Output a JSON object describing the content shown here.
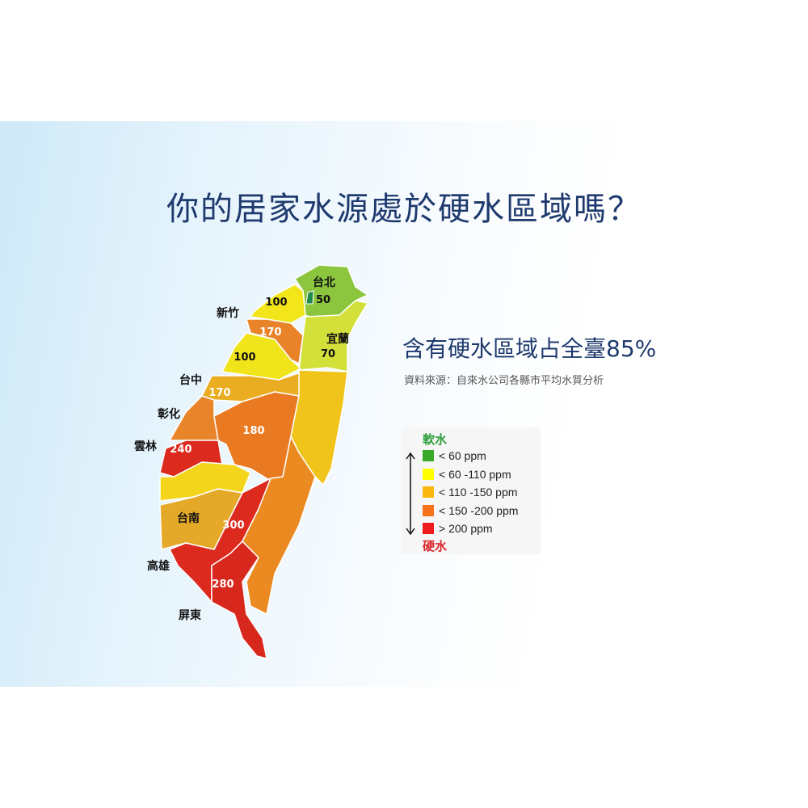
{
  "title": "你的居家水源處於硬水區域嗎？",
  "subtitle": "含有硬水區域占全臺85%",
  "source": "資料來源：自來水公司各縣市平均水質分析",
  "legend": {
    "soft_label": "軟水",
    "hard_label": "硬水",
    "soft_color": "#2e9e3a",
    "hard_color": "#d9262a",
    "items": [
      {
        "label": "< 60 ppm",
        "color": "#3aa829"
      },
      {
        "label": "< 60 -110 ppm",
        "color": "#ffff00"
      },
      {
        "label": "< 110 -150 ppm",
        "color": "#fbb80f"
      },
      {
        "label": "< 150 -200 ppm",
        "color": "#f5731b"
      },
      {
        "label": "> 200 ppm",
        "color": "#ee1c1c"
      }
    ]
  },
  "map_data": {
    "regions": [
      {
        "id": "taipei",
        "value": "50",
        "color": "#8cc63f"
      },
      {
        "id": "hsinchu-north",
        "value": "100",
        "color": "#f2e51a"
      },
      {
        "id": "hsinchu",
        "value": "170",
        "color": "#e8832a"
      },
      {
        "id": "yilan",
        "value": "70",
        "color": "#d4e03a"
      },
      {
        "id": "miaoli",
        "value": "100",
        "color": "#f0e41a"
      },
      {
        "id": "taichung",
        "value": "170",
        "color": "#eaad22"
      },
      {
        "id": "changhua",
        "value": "",
        "color": "#e8852a"
      },
      {
        "id": "nantou",
        "value": "180",
        "color": "#ea7a22"
      },
      {
        "id": "yunlin",
        "value": "240",
        "color": "#dd2a1e"
      },
      {
        "id": "chiayi",
        "value": "",
        "color": "#f3d61c"
      },
      {
        "id": "tainan",
        "value": "",
        "color": "#e5a92a"
      },
      {
        "id": "kaohsiung",
        "value": "300",
        "color": "#dc2a1f"
      },
      {
        "id": "pingtung",
        "value": "280",
        "color": "#d8281e"
      },
      {
        "id": "taitung",
        "value": "",
        "color": "#ea8a20"
      },
      {
        "id": "hualien",
        "value": "",
        "color": "#f0c41a"
      }
    ],
    "place_labels": [
      "台北",
      "新竹",
      "宜蘭",
      "台中",
      "彰化",
      "雲林",
      "台南",
      "高雄",
      "屏東"
    ]
  }
}
